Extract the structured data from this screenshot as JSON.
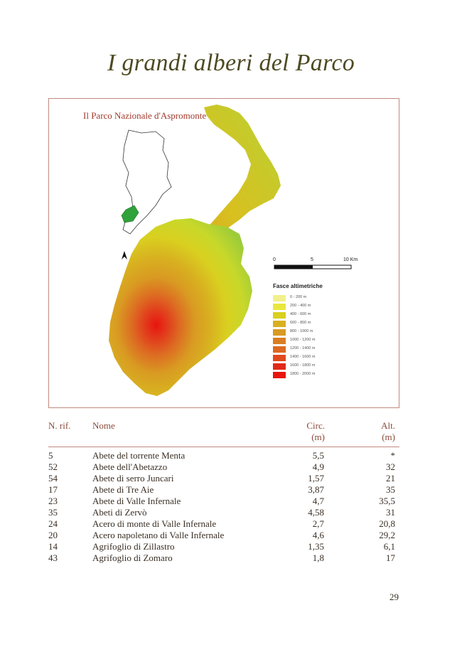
{
  "page": {
    "title": "I grandi alberi del Parco",
    "page_number": "29"
  },
  "map": {
    "caption": "Il Parco Nazionale d'Aspromonte",
    "scale_labels": [
      "0",
      "5",
      "10 Km"
    ],
    "north_label": "N",
    "legend_title": "Fasce altimetriche",
    "legend": [
      {
        "label": "0 - 200 m",
        "color": "#f2f08a"
      },
      {
        "label": "200 - 400 m",
        "color": "#e9e640"
      },
      {
        "label": "400 - 600 m",
        "color": "#d9d020"
      },
      {
        "label": "600 - 800 m",
        "color": "#d8b020"
      },
      {
        "label": "800 - 1000 m",
        "color": "#d99a22"
      },
      {
        "label": "1000 - 1200 m",
        "color": "#da7e22"
      },
      {
        "label": "1200 - 1400 m",
        "color": "#dd6a22"
      },
      {
        "label": "1400 - 1600 m",
        "color": "#e04a1e"
      },
      {
        "label": "1600 - 1800 m",
        "color": "#e02a18"
      },
      {
        "label": "1800 - 2000 m",
        "color": "#e81410"
      }
    ]
  },
  "table": {
    "headers": {
      "rif": "N. rif.",
      "nome": "Nome",
      "circ": "Circ.",
      "circ_unit": "(m)",
      "alt": "Alt.",
      "alt_unit": "(m)"
    },
    "rows": [
      {
        "rif": "5",
        "nome": "Abete del torrente Menta",
        "circ": "5,5",
        "alt": "*"
      },
      {
        "rif": "52",
        "nome": "Abete dell'Abetazzo",
        "circ": "4,9",
        "alt": "32"
      },
      {
        "rif": "54",
        "nome": "Abete di serro Juncari",
        "circ": "1,57",
        "alt": "21"
      },
      {
        "rif": "17",
        "nome": "Abete di Tre Aie",
        "circ": "3,87",
        "alt": "35"
      },
      {
        "rif": "23",
        "nome": "Abete di Valle Infernale",
        "circ": "4,7",
        "alt": "35,5"
      },
      {
        "rif": "35",
        "nome": "Abeti di Zervò",
        "circ": "4,58",
        "alt": "31"
      },
      {
        "rif": "24",
        "nome": "Acero di monte di Valle Infernale",
        "circ": "2,7",
        "alt": "20,8"
      },
      {
        "rif": "20",
        "nome": "Acero napoletano di Valle Infernale",
        "circ": "4,6",
        "alt": "29,2"
      },
      {
        "rif": "14",
        "nome": "Agrifoglio di Zillastro",
        "circ": "1,35",
        "alt": "6,1"
      },
      {
        "rif": "43",
        "nome": "Agrifoglio di Zomaro",
        "circ": "1,8",
        "alt": "17"
      }
    ]
  }
}
